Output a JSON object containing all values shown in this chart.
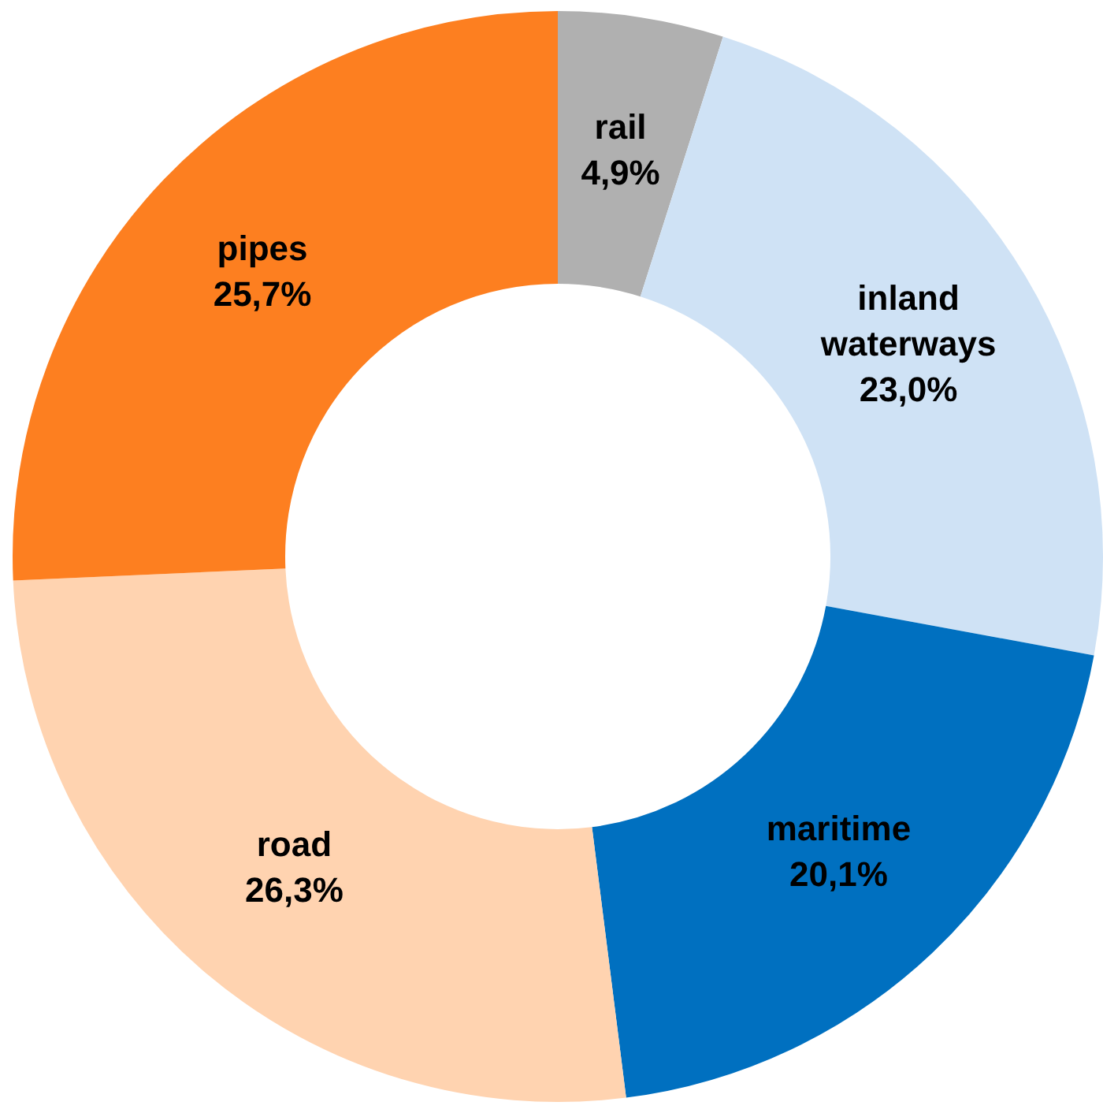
{
  "chart_data": {
    "type": "donut",
    "categories": [
      "rail",
      "inland waterways",
      "maritime",
      "road",
      "pipes"
    ],
    "values": [
      4.9,
      23.0,
      20.1,
      26.3,
      25.7
    ],
    "colors": [
      "#b0b0b0",
      "#cfe2f5",
      "#0070c0",
      "#ffd3b0",
      "#fd7f20"
    ],
    "value_labels": [
      "4,9%",
      "23,0%",
      "20,1%",
      "26,3%",
      "25,7%"
    ],
    "legend": false
  }
}
